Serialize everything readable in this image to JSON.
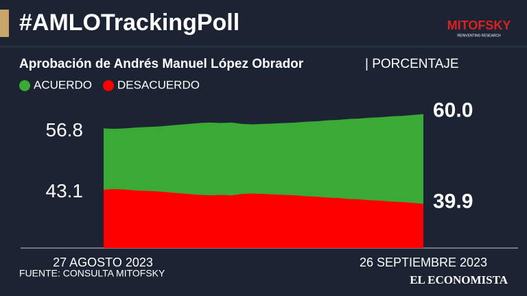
{
  "chart_data": {
    "type": "area",
    "title": "#AMLOTrackingPoll",
    "logo": "MITOFSKY",
    "logo_tagline": "REINVENTING RESEARCH",
    "subtitle": "Aprobación de Andrés Manuel López Obrador",
    "unit": "| PORCENTAJE",
    "source": "FUENTE: CONSULTA MITOFSKY",
    "publisher": "EL ECONOMISTA",
    "categories": [
      "27 AGOSTO 2023",
      null,
      null,
      null,
      null,
      null,
      null,
      null,
      null,
      null,
      null,
      null,
      null,
      null,
      null,
      null,
      null,
      null,
      null,
      null,
      null,
      null,
      null,
      null,
      null,
      null,
      null,
      null,
      null,
      null,
      "26 SEPTIEMBRE 2023"
    ],
    "ylim": [
      30,
      61
    ],
    "series": [
      {
        "name": "ACUERDO",
        "color": "#3aa935",
        "values": [
          56.8,
          56.7,
          56.8,
          57.0,
          57.1,
          57.2,
          57.4,
          57.6,
          57.8,
          58.0,
          58.1,
          58.0,
          58.1,
          57.8,
          57.7,
          57.8,
          57.9,
          58.0,
          58.1,
          58.3,
          58.4,
          58.6,
          58.7,
          58.9,
          59.0,
          59.2,
          59.3,
          59.5,
          59.6,
          59.8,
          60.0
        ],
        "value_labels": [
          "56.8",
          null,
          null,
          null,
          null,
          null,
          null,
          null,
          null,
          null,
          null,
          null,
          null,
          null,
          null,
          null,
          null,
          null,
          null,
          null,
          null,
          null,
          null,
          null,
          null,
          null,
          null,
          null,
          null,
          null,
          "60.0"
        ]
      },
      {
        "name": "DESACUERDO",
        "color": "#ff0000",
        "values": [
          43.1,
          43.2,
          43.1,
          42.9,
          42.8,
          42.7,
          42.5,
          42.3,
          42.1,
          41.9,
          41.8,
          41.9,
          41.8,
          42.1,
          42.2,
          42.1,
          42.0,
          41.9,
          41.8,
          41.6,
          41.5,
          41.3,
          41.2,
          41.0,
          40.9,
          40.7,
          40.6,
          40.4,
          40.3,
          40.1,
          39.9
        ],
        "value_labels": [
          "43.1",
          null,
          null,
          null,
          null,
          null,
          null,
          null,
          null,
          null,
          null,
          null,
          null,
          null,
          null,
          null,
          null,
          null,
          null,
          null,
          null,
          null,
          null,
          null,
          null,
          null,
          null,
          null,
          null,
          null,
          "39.9"
        ]
      }
    ]
  }
}
